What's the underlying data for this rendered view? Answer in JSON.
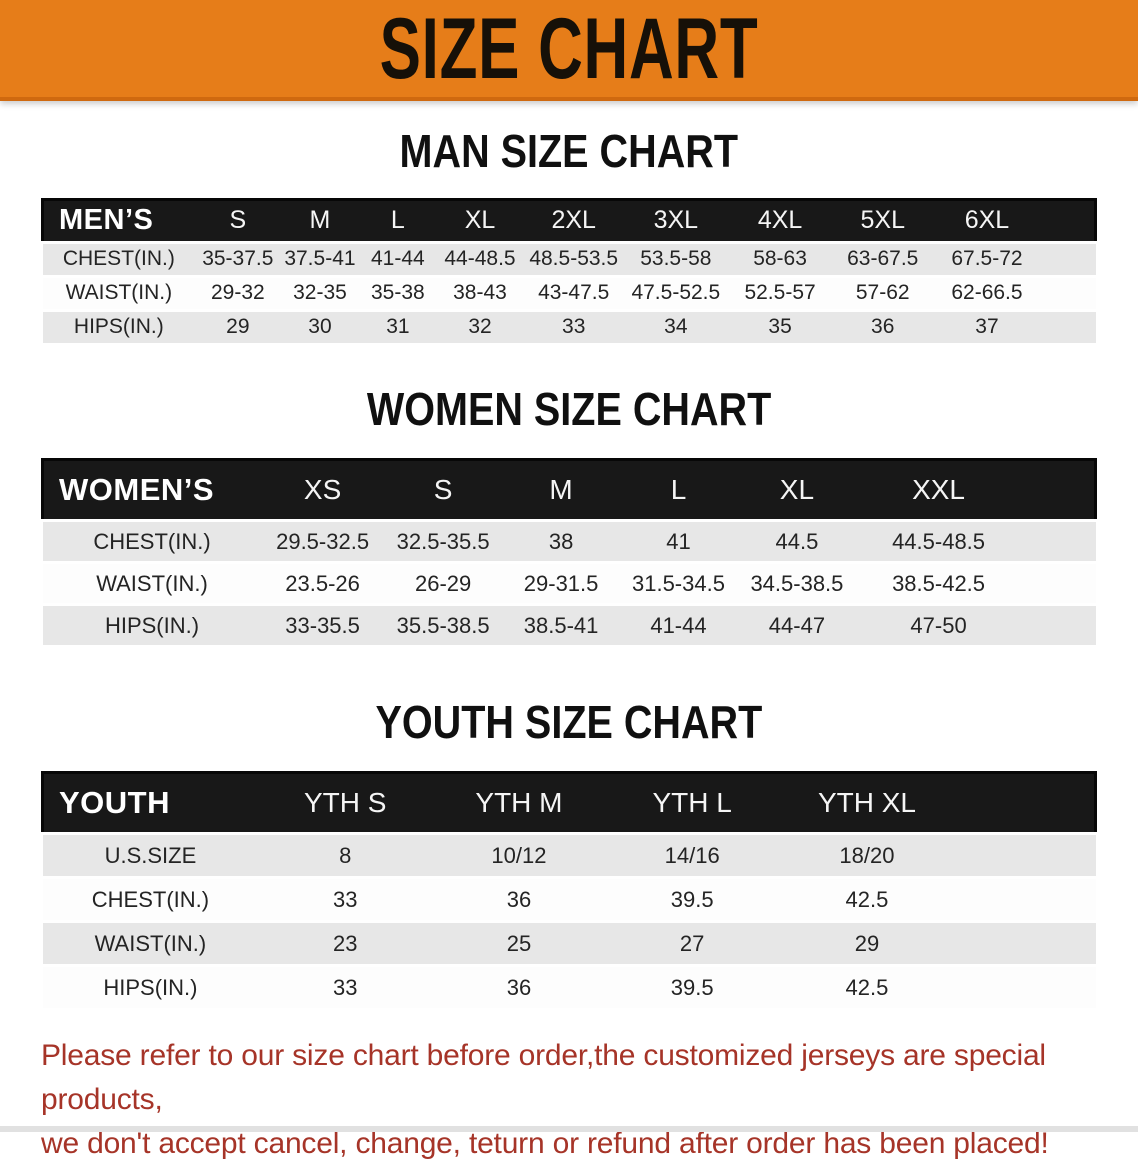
{
  "banner": {
    "title": "SIZE CHART"
  },
  "colors": {
    "banner_orange": "#e67d19",
    "table_header_black": "#181818",
    "row_stripe": "#e7e7e7",
    "footer_red": "#a63428"
  },
  "sections": [
    {
      "heading": "MAN SIZE CHART",
      "label": "MEN’S",
      "sizes": [
        "S",
        "M",
        "L",
        "XL",
        "2XL",
        "3XL",
        "4XL",
        "5XL",
        "6XL"
      ],
      "rows": [
        {
          "label": "CHEST(IN.)",
          "values": [
            "35-37.5",
            "37.5-41",
            "41-44",
            "44-48.5",
            "48.5-53.5",
            "53.5-58",
            "58-63",
            "63-67.5",
            "67.5-72"
          ]
        },
        {
          "label": "WAIST(IN.)",
          "values": [
            "29-32",
            "32-35",
            "35-38",
            "38-43",
            "43-47.5",
            "47.5-52.5",
            "52.5-57",
            "57-62",
            "62-66.5"
          ]
        },
        {
          "label": "HIPS(IN.)",
          "values": [
            "29",
            "30",
            "31",
            "32",
            "33",
            "34",
            "35",
            "36",
            "37"
          ]
        }
      ]
    },
    {
      "heading": "WOMEN SIZE CHART",
      "label": "WOMEN’S",
      "sizes": [
        "XS",
        "S",
        "M",
        "L",
        "XL",
        "XXL"
      ],
      "rows": [
        {
          "label": "CHEST(IN.)",
          "values": [
            "29.5-32.5",
            "32.5-35.5",
            "38",
            "41",
            "44.5",
            "44.5-48.5"
          ]
        },
        {
          "label": "WAIST(IN.)",
          "values": [
            "23.5-26",
            "26-29",
            "29-31.5",
            "31.5-34.5",
            "34.5-38.5",
            "38.5-42.5"
          ]
        },
        {
          "label": "HIPS(IN.)",
          "values": [
            "33-35.5",
            "35.5-38.5",
            "38.5-41",
            "41-44",
            "44-47",
            "47-50"
          ]
        }
      ]
    },
    {
      "heading": "YOUTH SIZE CHART",
      "label": "YOUTH",
      "sizes": [
        "YTH S",
        "YTH M",
        "YTH L",
        "YTH XL"
      ],
      "rows": [
        {
          "label": "U.S.SIZE",
          "values": [
            "8",
            "10/12",
            "14/16",
            "18/20"
          ]
        },
        {
          "label": "CHEST(IN.)",
          "values": [
            "33",
            "36",
            "39.5",
            "42.5"
          ]
        },
        {
          "label": "WAIST(IN.)",
          "values": [
            "23",
            "25",
            "27",
            "29"
          ]
        },
        {
          "label": "HIPS(IN.)",
          "values": [
            "33",
            "36",
            "39.5",
            "42.5"
          ]
        }
      ]
    }
  ],
  "footer": {
    "line1": "Please refer to our size chart before order,the customized jerseys are special products,",
    "line2": "we don't accept cancel, change, teturn or refund after order has been placed!"
  }
}
